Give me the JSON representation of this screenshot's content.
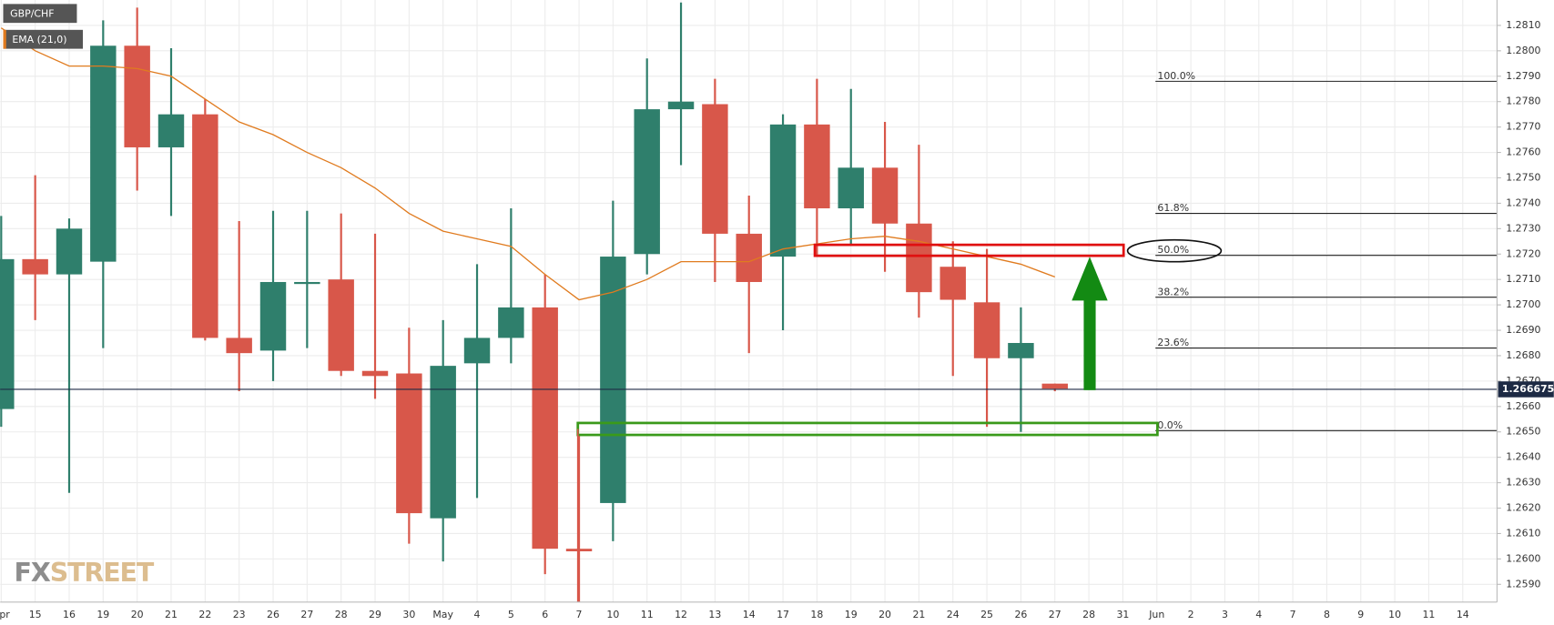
{
  "chart_data": {
    "type": "candlestick",
    "categories": [
      "Apr",
      "15",
      "16",
      "19",
      "20",
      "21",
      "22",
      "23",
      "26",
      "27",
      "28",
      "29",
      "30",
      "May",
      "4",
      "5",
      "6",
      "7",
      "10",
      "11",
      "12",
      "13",
      "14",
      "17",
      "18",
      "19",
      "20",
      "21",
      "24",
      "25",
      "26",
      "27",
      "28",
      "31",
      "Jun",
      "2",
      "3",
      "4",
      "7",
      "8",
      "9",
      "10",
      "11",
      "14"
    ],
    "series": [
      {
        "name": "GBP/CHF",
        "up_color": "#2f7f6c",
        "down_color": "#d8574a",
        "open": [
          1.2659,
          1.2718,
          1.2712,
          1.2717,
          1.2802,
          1.2762,
          1.2775,
          1.2687,
          1.2682,
          1.2709,
          1.271,
          1.2674,
          1.2673,
          1.2616,
          1.2677,
          1.2687,
          1.2699,
          1.2604,
          1.2622,
          1.272,
          1.2777,
          1.2779,
          1.2728,
          1.2719,
          1.2771,
          1.2738,
          1.2754,
          1.2732,
          1.2715,
          1.2701,
          1.2679,
          1.2669,
          null,
          null,
          null,
          null,
          null,
          null,
          null,
          null,
          null,
          null,
          null,
          null
        ],
        "high": [
          1.2735,
          1.2751,
          1.2734,
          1.2812,
          1.2817,
          1.2801,
          1.2781,
          1.2733,
          1.2737,
          1.2737,
          1.2736,
          1.2728,
          1.2691,
          1.2694,
          1.2716,
          1.2738,
          1.2712,
          1.2649,
          1.2741,
          1.2797,
          1.2819,
          1.2789,
          1.2743,
          1.2775,
          1.2789,
          1.2785,
          1.2772,
          1.2763,
          1.2725,
          1.2722,
          1.2699,
          1.2669,
          null,
          null,
          null,
          null,
          null,
          null,
          null,
          null,
          null,
          null,
          null,
          null
        ],
        "low": [
          1.2652,
          1.2694,
          1.2626,
          1.2683,
          1.2745,
          1.2735,
          1.2686,
          1.2666,
          1.267,
          1.2683,
          1.2672,
          1.2663,
          1.2606,
          1.2599,
          1.2624,
          1.2677,
          1.2594,
          1.2583,
          1.2607,
          1.2712,
          1.2755,
          1.2709,
          1.2681,
          1.269,
          1.2719,
          1.2724,
          1.2713,
          1.2695,
          1.2672,
          1.2652,
          1.265,
          1.2666,
          null,
          null,
          null,
          null,
          null,
          null,
          null,
          null,
          null,
          null,
          null,
          null
        ],
        "close": [
          1.2718,
          1.2712,
          1.273,
          1.2802,
          1.2762,
          1.2775,
          1.2687,
          1.2681,
          1.2709,
          1.2709,
          1.2674,
          1.2672,
          1.2618,
          1.2676,
          1.2687,
          1.2699,
          1.2604,
          1.2603,
          1.2719,
          1.2777,
          1.278,
          1.2728,
          1.2709,
          1.2771,
          1.2738,
          1.2754,
          1.2732,
          1.2705,
          1.2702,
          1.2679,
          1.2685,
          1.2667,
          null,
          null,
          null,
          null,
          null,
          null,
          null,
          null,
          null,
          null,
          null,
          null
        ]
      },
      {
        "name": "EMA (21,0)",
        "type": "line",
        "color": "#e07b1f",
        "values": [
          1.2809,
          1.28,
          1.2794,
          1.2794,
          1.2793,
          1.279,
          1.2781,
          1.2772,
          1.2767,
          1.276,
          1.2754,
          1.2746,
          1.2736,
          1.2729,
          1.2726,
          1.2723,
          1.2712,
          1.2702,
          1.2705,
          1.271,
          1.2717,
          1.2717,
          1.2717,
          1.2722,
          1.2724,
          1.2726,
          1.2727,
          1.2725,
          1.2722,
          1.2719,
          1.2716,
          1.2711,
          null,
          null,
          null,
          null,
          null,
          null,
          null,
          null,
          null,
          null,
          null,
          null
        ]
      }
    ],
    "ylim": [
      1.2583,
      1.282
    ],
    "yticks": [
      {
        "value": 1.259,
        "label": "1.2590"
      },
      {
        "value": 1.26,
        "label": "1.2600"
      },
      {
        "value": 1.261,
        "label": "1.2610"
      },
      {
        "value": 1.262,
        "label": "1.2620"
      },
      {
        "value": 1.263,
        "label": "1.2630"
      },
      {
        "value": 1.264,
        "label": "1.2640"
      },
      {
        "value": 1.265,
        "label": "1.2650"
      },
      {
        "value": 1.266,
        "label": "1.2660"
      },
      {
        "value": 1.267,
        "label": "1.2670"
      },
      {
        "value": 1.268,
        "label": "1.2680"
      },
      {
        "value": 1.269,
        "label": "1.2690"
      },
      {
        "value": 1.27,
        "label": "1.2700"
      },
      {
        "value": 1.271,
        "label": "1.2710"
      },
      {
        "value": 1.272,
        "label": "1.2720"
      },
      {
        "value": 1.273,
        "label": "1.2730"
      },
      {
        "value": 1.274,
        "label": "1.2740"
      },
      {
        "value": 1.275,
        "label": "1.2750"
      },
      {
        "value": 1.276,
        "label": "1.2760"
      },
      {
        "value": 1.277,
        "label": "1.2770"
      },
      {
        "value": 1.278,
        "label": "1.2780"
      },
      {
        "value": 1.279,
        "label": "1.2790"
      },
      {
        "value": 1.28,
        "label": "1.2800"
      },
      {
        "value": 1.281,
        "label": "1.2810"
      }
    ],
    "grid": true,
    "last_price": 1.266675,
    "fib_levels": [
      {
        "label": "100.0%",
        "value": 1.2788
      },
      {
        "label": "61.8%",
        "value": 1.2736
      },
      {
        "label": "50.0%",
        "value": 1.27195
      },
      {
        "label": "38.2%",
        "value": 1.2703
      },
      {
        "label": "23.6%",
        "value": 1.2683
      },
      {
        "label": "0.0%",
        "value": 1.26505
      }
    ],
    "logo": {
      "prefix": "FX",
      "suffix": "STREET"
    }
  }
}
